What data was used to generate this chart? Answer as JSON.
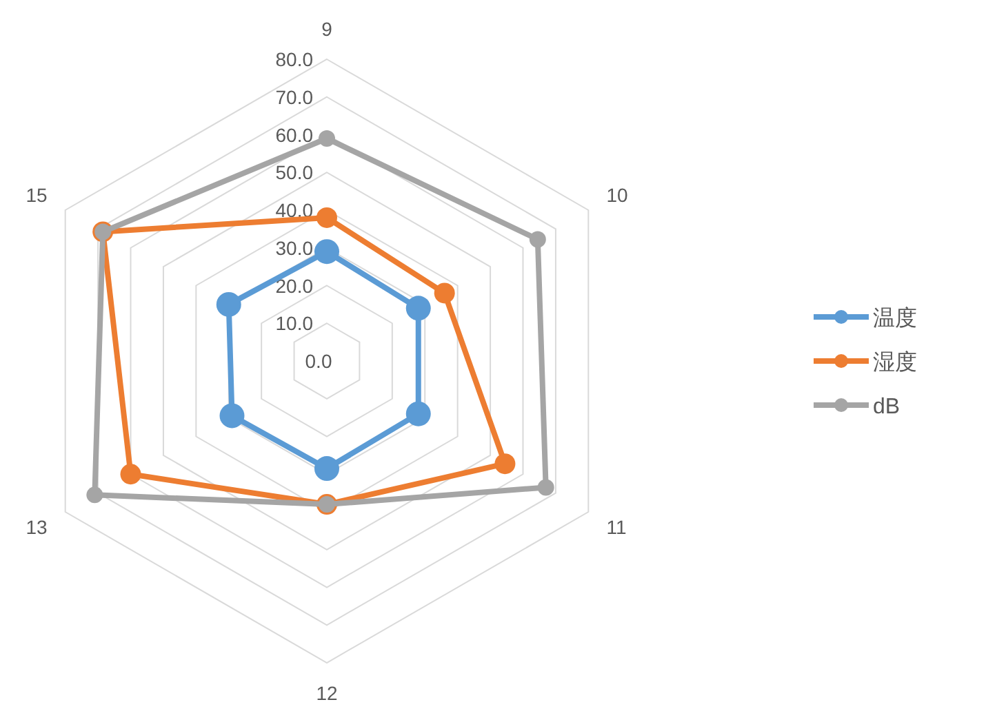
{
  "chart_data": {
    "type": "radar",
    "categories": [
      "9",
      "10",
      "11",
      "12",
      "13",
      "15"
    ],
    "series": [
      {
        "name": "温度",
        "color": "#5b9bd5",
        "values": [
          29,
          28,
          28,
          28.5,
          29,
          30
        ]
      },
      {
        "name": "湿度",
        "color": "#ed7d31",
        "values": [
          38,
          36,
          54.5,
          38,
          60,
          68.5
        ]
      },
      {
        "name": "dB",
        "color": "#a5a5a5",
        "values": [
          59,
          64.5,
          67,
          38,
          71,
          68.5
        ]
      }
    ],
    "ylim": [
      0,
      80
    ],
    "yticks": [
      {
        "value": 0,
        "label": "0.0"
      },
      {
        "value": 10,
        "label": "10.0"
      },
      {
        "value": 20,
        "label": "20.0"
      },
      {
        "value": 30,
        "label": "30.0"
      },
      {
        "value": 40,
        "label": "40.0"
      },
      {
        "value": 50,
        "label": "50.0"
      },
      {
        "value": 60,
        "label": "60.0"
      },
      {
        "value": 70,
        "label": "70.0"
      },
      {
        "value": 80,
        "label": "80.0"
      }
    ],
    "grid": true,
    "legend": "right",
    "marker": "circle"
  }
}
